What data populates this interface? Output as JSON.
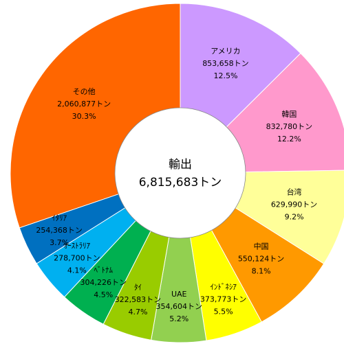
{
  "chart_data": {
    "type": "donut",
    "center_title": "輸出",
    "total": 6815683,
    "total_label": "6,815,683トン",
    "categories": [
      "アメリカ",
      "韓国",
      "台湾",
      "中国",
      "ｲﾝﾄﾞﾈｼｱ",
      "UAE",
      "ﾀｲ",
      "ﾍﾞﾄﾅﾑ",
      "ｵｰｽﾄﾗﾘｱ",
      "ｲﾀﾘｱ",
      "その他"
    ],
    "values": [
      853658,
      832780,
      629990,
      550124,
      373773,
      354604,
      322583,
      304226,
      278700,
      254368,
      2060877
    ],
    "value_labels": [
      "853,658トン",
      "832,780トン",
      "629,990トン",
      "550,124トン",
      "373,773トン",
      "354,604トン",
      "322,583トン",
      "304,226トン",
      "278,700トン",
      "254,368トン",
      "2,060,877トン"
    ],
    "percents": [
      12.5,
      12.2,
      9.2,
      8.1,
      5.5,
      5.2,
      4.7,
      4.5,
      4.1,
      3.7,
      30.3
    ],
    "percent_labels": [
      "12.5%",
      "12.2%",
      "9.2%",
      "8.1%",
      "5.5%",
      "5.2%",
      "4.7%",
      "4.5%",
      "4.1%",
      "3.7%",
      "30.3%"
    ],
    "colors": [
      "#cc99ff",
      "#ff99cc",
      "#ffff99",
      "#ff9900",
      "#ffff00",
      "#92d050",
      "#99cc00",
      "#00b050",
      "#00b0f0",
      "#0070c0",
      "#ff6600"
    ]
  }
}
